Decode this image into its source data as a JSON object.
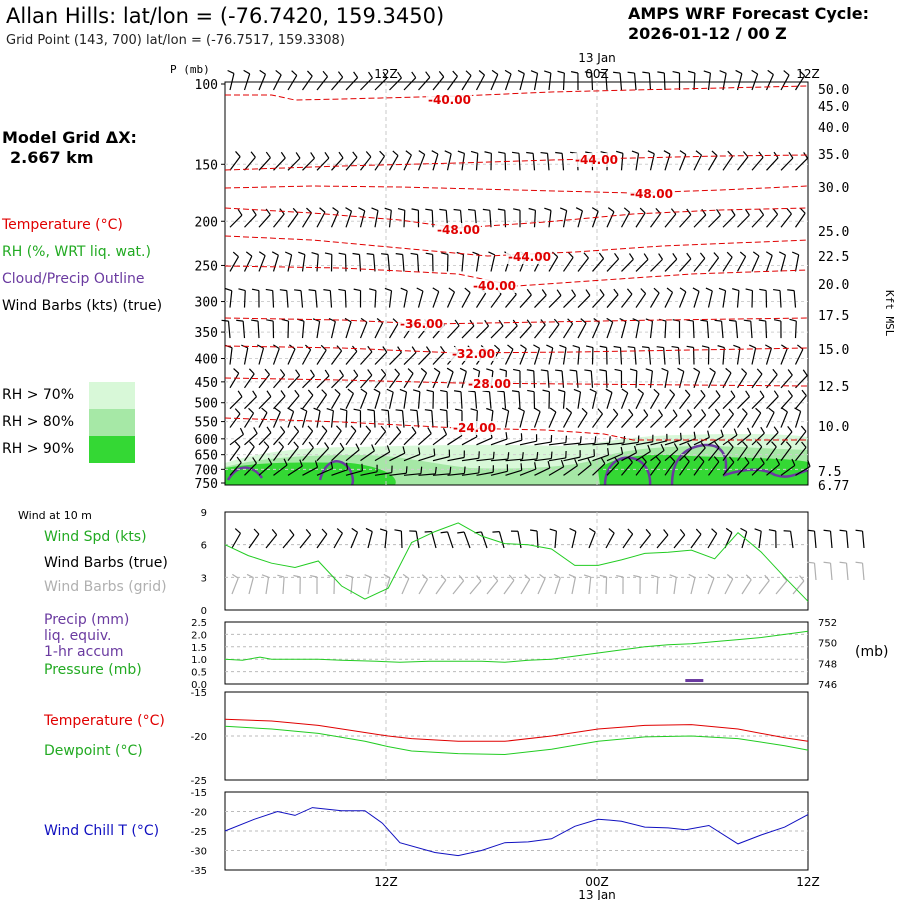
{
  "header": {
    "title": "Allan Hills:  lat/lon = (-76.7420, 159.3450)",
    "grid_point": "Grid Point (143, 700) lat/lon = (-76.7517, 159.3308)",
    "cycle_line1": "AMPS WRF Forecast Cycle:",
    "cycle_line2": "2026-01-12 / 00  Z",
    "model_grid_line1": "Model Grid ΔX:",
    "model_grid_line2": "2.667 km"
  },
  "legend": {
    "temperature": "Temperature (°C)",
    "rh": "RH (%, WRT liq. wat.)",
    "cloud": "Cloud/Precip Outline",
    "wind_barbs": "Wind Barbs (kts) (true)",
    "rh70": "RH > 70%",
    "rh80": "RH > 80%",
    "rh90": "RH > 90%",
    "rh_colors": [
      "#d8f8d8",
      "#a6e8a6",
      "#34d834"
    ],
    "wind10": "Wind at 10 m",
    "wind_spd": "Wind Spd (kts)",
    "wind_barbs_true": "Wind Barbs (true)",
    "wind_barbs_grid": "Wind Barbs (grid)",
    "precip1": "Precip (mm)",
    "precip2": "liq. equiv.",
    "precip3": "1-hr accum",
    "pressure": "Pressure (mb)",
    "temp2": "Temperature (°C)",
    "dewpoint": "Dewpoint (°C)",
    "windchill": "Wind Chill T (°C)",
    "pressure_unit": "(mb)",
    "p_axis_label": "P (mb)",
    "kft_label": "Kft MSL"
  },
  "chart_data": {
    "time_ticks": [
      "12Z",
      "00Z",
      "12Z"
    ],
    "date_label": "13 Jan",
    "colors": {
      "red": "#e00000",
      "green": "#22cc22",
      "purple": "#6a3aa0",
      "blue": "#1010c0",
      "grey": "#b0b0b0",
      "black": "#000000"
    },
    "cross_section": {
      "type": "heatmap",
      "p_ticks": [
        "100",
        "150",
        "200",
        "250",
        "300",
        "350",
        "400",
        "450",
        "500",
        "550",
        "600",
        "650",
        "700",
        "750"
      ],
      "kft_ticks": [
        "50.0",
        "45.0",
        "40.0",
        "35.0",
        "30.0",
        "25.0",
        "22.5",
        "20.0",
        "17.5",
        "15.0",
        "12.5",
        "10.0",
        "7.5",
        "6.77"
      ],
      "temp_labels": [
        "-40.00",
        "-44.00",
        "-48.00",
        "-48.00",
        "-44.00",
        "-40.00",
        "-36.00",
        "-32.00",
        "-28.00",
        "-24.00"
      ],
      "temp_contours": [
        {
          "label": "-40.00",
          "pts": [
            [
              0,
              95
            ],
            [
              8,
              95
            ],
            [
              12,
              100
            ],
            [
              20,
              99
            ],
            [
              40,
              96
            ],
            [
              56,
              92
            ],
            [
              70,
              90
            ],
            [
              85,
              88
            ],
            [
              100,
              86
            ]
          ]
        },
        {
          "label": "-44.00",
          "pts": [
            [
              0,
              170
            ],
            [
              20,
              166
            ],
            [
              40,
              163
            ],
            [
              56,
              160
            ],
            [
              70,
              158
            ],
            [
              85,
              156
            ],
            [
              100,
              155
            ]
          ]
        },
        {
          "label": "-48.00",
          "pts": [
            [
              0,
              188
            ],
            [
              15,
              186
            ],
            [
              30,
              187
            ],
            [
              50,
              190
            ],
            [
              70,
              193
            ],
            [
              85,
              190
            ],
            [
              100,
              186
            ]
          ]
        },
        {
          "label": "-48.00",
          "pts": [
            [
              0,
              208
            ],
            [
              15,
              213
            ],
            [
              30,
              220
            ],
            [
              40,
              228
            ],
            [
              55,
              222
            ],
            [
              70,
              214
            ],
            [
              85,
              210
            ],
            [
              100,
              208
            ]
          ]
        },
        {
          "label": "-44.00",
          "pts": [
            [
              0,
              236
            ],
            [
              15,
              240
            ],
            [
              30,
              248
            ],
            [
              45,
              256
            ],
            [
              60,
              252
            ],
            [
              75,
              246
            ],
            [
              100,
              240
            ]
          ]
        },
        {
          "label": "-40.00",
          "pts": [
            [
              0,
              266
            ],
            [
              20,
              268
            ],
            [
              40,
              274
            ],
            [
              50,
              286
            ],
            [
              65,
              280
            ],
            [
              80,
              274
            ],
            [
              100,
              270
            ]
          ]
        },
        {
          "label": "-36.00",
          "pts": [
            [
              0,
              318
            ],
            [
              20,
              320
            ],
            [
              35,
              324
            ],
            [
              55,
              322
            ],
            [
              75,
              320
            ],
            [
              100,
              318
            ]
          ]
        },
        {
          "label": "-32.00",
          "pts": [
            [
              0,
              346
            ],
            [
              20,
              348
            ],
            [
              40,
              353
            ],
            [
              60,
              352
            ],
            [
              80,
              350
            ],
            [
              100,
              348
            ]
          ]
        },
        {
          "label": "-28.00",
          "pts": [
            [
              0,
              378
            ],
            [
              20,
              380
            ],
            [
              40,
              383
            ],
            [
              60,
              384
            ],
            [
              80,
              385
            ],
            [
              100,
              386
            ]
          ]
        },
        {
          "label": "-24.00",
          "pts": [
            [
              0,
              418
            ],
            [
              20,
              422
            ],
            [
              40,
              428
            ],
            [
              55,
              430
            ],
            [
              65,
              434
            ],
            [
              70,
              440
            ],
            [
              80,
              440
            ],
            [
              100,
              440
            ]
          ]
        }
      ]
    },
    "wind_speed": {
      "type": "line",
      "ylim": [
        0,
        9
      ],
      "yticks": [
        "0",
        "3",
        "6",
        "9"
      ],
      "x": [
        0,
        4,
        8,
        12,
        16,
        20,
        24,
        28,
        32,
        36,
        40,
        44,
        48,
        52,
        56,
        60,
        64,
        68,
        72,
        76,
        80,
        84,
        88,
        92,
        96,
        100
      ],
      "values": [
        6.0,
        5.0,
        4.3,
        3.9,
        4.5,
        2.2,
        1.0,
        2.0,
        6.2,
        7.2,
        8.0,
        6.8,
        6.1,
        6.0,
        5.6,
        4.1,
        4.1,
        4.6,
        5.2,
        5.3,
        5.5,
        4.7,
        7.1,
        5.3,
        3.0,
        0.8
      ]
    },
    "pressure": {
      "type": "line",
      "ylim": [
        746,
        752
      ],
      "yticks": [
        "746",
        "748",
        "750",
        "752"
      ],
      "x": [
        0,
        3,
        6,
        8,
        12,
        16,
        20,
        26,
        30,
        35,
        40,
        44,
        48,
        52,
        56,
        60,
        64,
        68,
        72,
        76,
        80,
        84,
        88,
        92,
        96,
        100
      ],
      "values": [
        748.4,
        748.3,
        748.6,
        748.4,
        748.4,
        748.4,
        748.3,
        748.2,
        748.1,
        748.2,
        748.2,
        748.2,
        748.1,
        748.3,
        748.4,
        748.7,
        749.0,
        749.3,
        749.6,
        749.8,
        749.9,
        750.1,
        750.3,
        750.5,
        750.8,
        751.1
      ]
    },
    "precip": {
      "type": "bar",
      "ylim": [
        0,
        2.5
      ],
      "yticks": [
        "0.0",
        "0.5",
        "1.0",
        "1.5",
        "2.0",
        "2.5"
      ],
      "x": [
        80.5
      ],
      "values": [
        0.12
      ]
    },
    "temperature": {
      "type": "line",
      "ylim": [
        -25,
        -15
      ],
      "yticks": [
        "-25",
        "-20",
        "-15"
      ],
      "series": [
        {
          "name": "Temperature",
          "x": [
            0,
            8,
            16,
            24,
            28,
            32,
            40,
            48,
            56,
            64,
            72,
            80,
            88,
            96,
            100
          ],
          "values": [
            -18.1,
            -18.3,
            -18.8,
            -19.6,
            -20.0,
            -20.3,
            -20.6,
            -20.6,
            -20.0,
            -19.2,
            -18.8,
            -18.7,
            -19.2,
            -20.2,
            -20.6
          ]
        },
        {
          "name": "Dewpoint",
          "x": [
            0,
            8,
            16,
            24,
            28,
            32,
            40,
            48,
            56,
            64,
            72,
            80,
            88,
            96,
            100
          ],
          "values": [
            -18.9,
            -19.2,
            -19.7,
            -20.6,
            -21.2,
            -21.7,
            -22.0,
            -22.1,
            -21.5,
            -20.6,
            -20.1,
            -20.0,
            -20.3,
            -21.1,
            -21.6
          ]
        }
      ]
    },
    "wind_chill": {
      "type": "line",
      "ylim": [
        -35,
        -15
      ],
      "yticks": [
        "-35",
        "-30",
        "-25",
        "-20",
        "-15"
      ],
      "x": [
        0,
        5,
        9,
        12,
        15,
        20,
        24,
        27,
        30,
        36,
        40,
        44,
        48,
        52,
        56,
        60,
        64,
        66,
        68,
        72,
        76,
        79,
        83,
        88,
        92,
        96,
        100
      ],
      "values": [
        -25.0,
        -22.0,
        -20.0,
        -21.0,
        -19.0,
        -19.8,
        -19.8,
        -23.0,
        -28.0,
        -30.5,
        -31.3,
        -30.0,
        -28.0,
        -27.8,
        -27.0,
        -23.8,
        -22.0,
        -22.2,
        -22.5,
        -24.0,
        -24.2,
        -24.7,
        -23.6,
        -28.3,
        -26.0,
        -24.0,
        -20.8
      ]
    }
  }
}
